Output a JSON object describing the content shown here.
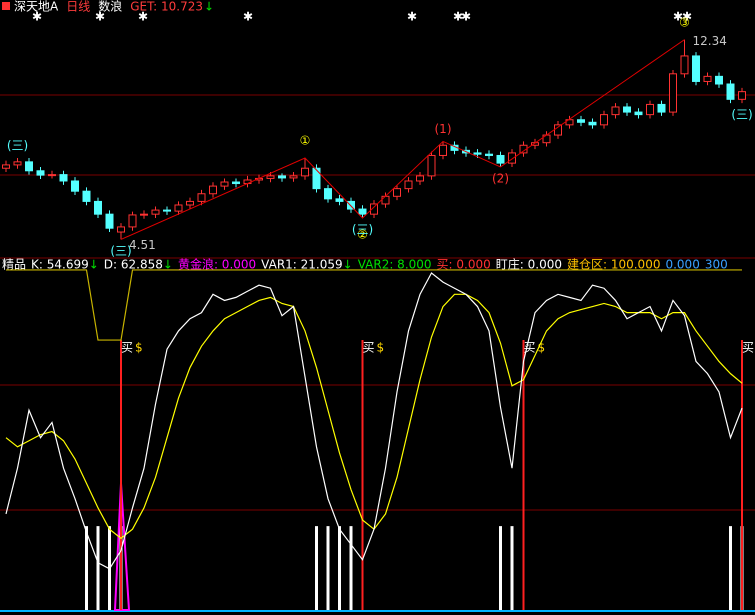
{
  "header": {
    "items": [
      {
        "text": "深天地A",
        "color": "#ffffff"
      },
      {
        "text": "日线",
        "color": "#ff3c3c"
      },
      {
        "text": "数浪",
        "color": "#ffffff"
      },
      {
        "text": "GET: 10.723",
        "color": "#ff3c3c"
      },
      {
        "text": "↓",
        "color": "#00e000"
      }
    ]
  },
  "chart_data": [
    {
      "type": "candlestick",
      "ylim": [
        3.9,
        13.5
      ],
      "up_color": "#ff3232",
      "down_color": "#54ffff",
      "wave_color": "#e00000",
      "open": [
        7.3,
        7.43,
        7.55,
        7.2,
        7.03,
        7.05,
        6.8,
        6.4,
        6.0,
        5.5,
        4.8,
        5.0,
        5.47,
        5.5,
        5.66,
        5.62,
        5.86,
        6.0,
        6.3,
        6.6,
        6.76,
        6.7,
        6.84,
        6.9,
        7.0,
        6.92,
        7.0,
        7.3,
        6.5,
        6.1,
        6.0,
        5.7,
        5.5,
        5.9,
        6.2,
        6.5,
        6.8,
        7.0,
        7.8,
        8.2,
        8.0,
        7.9,
        7.85,
        7.8,
        7.5,
        7.9,
        8.2,
        8.3,
        8.6,
        9.0,
        9.2,
        9.1,
        9.0,
        9.4,
        9.7,
        9.5,
        9.4,
        9.8,
        9.5,
        11.0,
        11.7,
        10.7,
        10.9,
        10.6,
        10.0
      ],
      "close": [
        7.43,
        7.55,
        7.2,
        7.03,
        7.05,
        6.8,
        6.4,
        6.0,
        5.5,
        4.95,
        5.0,
        5.47,
        5.5,
        5.66,
        5.62,
        5.86,
        6.0,
        6.3,
        6.6,
        6.76,
        6.7,
        6.84,
        6.9,
        7.0,
        6.92,
        7.0,
        7.3,
        6.5,
        6.1,
        6.0,
        5.7,
        5.5,
        5.9,
        6.2,
        6.5,
        6.8,
        7.0,
        7.8,
        8.2,
        8.0,
        7.9,
        7.85,
        7.8,
        7.5,
        7.9,
        8.2,
        8.3,
        8.6,
        9.0,
        9.2,
        9.1,
        9.0,
        9.4,
        9.7,
        9.5,
        9.4,
        9.8,
        9.5,
        11.0,
        11.7,
        10.7,
        10.9,
        10.6,
        10.0,
        10.3
      ],
      "high": [
        7.6,
        7.7,
        7.7,
        7.35,
        7.2,
        7.2,
        6.95,
        6.55,
        6.15,
        5.65,
        5.15,
        5.6,
        5.65,
        5.8,
        5.8,
        6.0,
        6.15,
        6.45,
        6.75,
        6.9,
        6.9,
        7.0,
        7.05,
        7.15,
        7.1,
        7.15,
        7.7,
        7.45,
        6.65,
        6.25,
        6.15,
        5.85,
        6.05,
        6.35,
        6.65,
        6.95,
        7.15,
        7.95,
        8.35,
        8.35,
        8.15,
        8.05,
        8.0,
        7.95,
        8.05,
        8.35,
        8.45,
        8.75,
        9.15,
        9.35,
        9.35,
        9.25,
        9.55,
        9.85,
        9.85,
        9.65,
        9.95,
        9.95,
        11.15,
        12.34,
        11.85,
        11.05,
        11.05,
        10.75,
        10.45
      ],
      "low": [
        7.15,
        7.28,
        7.05,
        6.88,
        6.9,
        6.65,
        6.25,
        5.85,
        5.35,
        4.8,
        4.51,
        4.85,
        5.32,
        5.35,
        5.47,
        5.47,
        5.71,
        5.85,
        6.15,
        6.45,
        6.55,
        6.55,
        6.69,
        6.75,
        6.77,
        6.77,
        6.85,
        6.35,
        5.95,
        5.85,
        5.55,
        5.35,
        5.35,
        5.75,
        6.05,
        6.35,
        6.65,
        6.85,
        7.65,
        7.85,
        7.75,
        7.7,
        7.65,
        7.35,
        7.35,
        7.75,
        8.05,
        8.15,
        8.45,
        8.85,
        8.95,
        8.85,
        8.85,
        9.25,
        9.35,
        9.25,
        9.25,
        9.35,
        9.35,
        10.85,
        10.55,
        10.55,
        10.45,
        9.85,
        9.85
      ],
      "wave": [
        {
          "index": 10,
          "at": "low"
        },
        {
          "index": 26,
          "at": "high"
        },
        {
          "index": 31,
          "at": "low"
        },
        {
          "index": 38,
          "at": "high"
        },
        {
          "index": 43,
          "at": "low"
        },
        {
          "index": 59,
          "at": "high"
        }
      ],
      "annotations": [
        {
          "text": "4.51",
          "index": 10,
          "at": "low",
          "color": "#c8c8c8"
        },
        {
          "text": "12.34",
          "index": 59,
          "at": "high",
          "color": "#c8c8c8"
        },
        {
          "text": "①",
          "index": 26,
          "at": "high",
          "color": "#ffff00"
        },
        {
          "text": "②",
          "index": 31,
          "at": "low",
          "color": "#ffff00"
        },
        {
          "text": "③",
          "index": 59,
          "at": "high",
          "color": "#ffff00"
        },
        {
          "text": "(1)",
          "index": 38,
          "at": "high",
          "color": "#ff3232"
        },
        {
          "text": "(2)",
          "index": 43,
          "at": "low",
          "color": "#ff3232"
        },
        {
          "text": "(三)",
          "index": 1,
          "at": "high",
          "color": "#54ffff"
        },
        {
          "text": "(三)",
          "index": 10,
          "at": "low",
          "color": "#54ffff"
        },
        {
          "text": "(三)",
          "index": 31,
          "at": "low",
          "color": "#54ffff"
        },
        {
          "text": "(三)",
          "index": 64,
          "at": "low",
          "color": "#54ffff"
        }
      ]
    },
    {
      "type": "indicator",
      "ylim": [
        -11.5,
        102.6
      ],
      "legend": [
        {
          "text": "精品",
          "color": "#ffffff"
        },
        {
          "text": "K: 54.699",
          "color": "#ffffff",
          "arrow": "↓"
        },
        {
          "text": "D: 62.858",
          "color": "#ffffff",
          "arrow": "↓"
        },
        {
          "text": "黄金浪: 0.000",
          "color": "#ff00ff"
        },
        {
          "text": "VAR1: 21.059",
          "color": "#ffffff",
          "arrow": "↓"
        },
        {
          "text": "VAR2: 8.000",
          "color": "#00e000"
        },
        {
          "text": "买: 0.000",
          "color": "#ff3232"
        },
        {
          "text": "盯庄: 0.000",
          "color": "#ffffff"
        },
        {
          "text": "建仓区: 100.000",
          "color": "#ffc000"
        },
        {
          "text": "0.000",
          "color": "#3aa0ff"
        },
        {
          "text": "300",
          "color": "#3aa0ff"
        }
      ],
      "arrow_color": "#00e000",
      "series": [
        {
          "color": "#ffffff",
          "values": [
            20,
            35,
            54,
            45,
            50,
            35,
            25,
            14,
            4,
            2,
            8,
            22,
            35,
            56,
            74,
            80,
            84,
            86,
            92,
            90,
            91,
            93,
            95,
            94,
            85,
            88,
            65,
            42,
            25,
            15,
            10,
            5,
            15,
            35,
            60,
            80,
            92,
            99,
            96,
            94,
            92,
            88,
            80,
            55,
            35,
            70,
            86,
            90,
            92,
            91,
            90,
            95,
            94,
            90,
            84,
            86,
            88,
            80,
            90,
            85,
            70,
            66,
            60,
            45,
            54.699
          ]
        },
        {
          "color": "#ffff00",
          "values": [
            45,
            42,
            44,
            46,
            47,
            44,
            38,
            30,
            22,
            15,
            12,
            15,
            22,
            32,
            45,
            58,
            68,
            75,
            80,
            84,
            86,
            88,
            90,
            91,
            89,
            88,
            80,
            68,
            54,
            40,
            28,
            18,
            15,
            20,
            32,
            48,
            64,
            78,
            88,
            92,
            92,
            90,
            86,
            76,
            62,
            64,
            72,
            80,
            84,
            86,
            87,
            88,
            89,
            88,
            86,
            86,
            86,
            84,
            86,
            86,
            80,
            75,
            70,
            66,
            62.858
          ]
        },
        {
          "color": "#c8b400",
          "values": [
            100,
            100,
            100,
            100,
            100,
            100,
            100,
            100,
            77,
            77,
            77,
            100,
            100,
            100,
            100,
            100,
            100,
            100,
            100,
            100,
            100,
            100,
            100,
            100,
            100,
            100,
            100,
            100,
            100,
            100,
            100,
            100,
            100,
            100,
            100,
            100,
            100,
            100,
            100,
            100,
            100,
            100,
            100,
            100,
            100,
            100,
            100,
            100,
            100,
            100,
            100,
            100,
            100,
            100,
            100,
            100,
            100,
            100,
            100,
            100,
            100,
            100,
            100,
            100,
            100
          ]
        }
      ],
      "bars": [
        {
          "color": "#ffffff",
          "values": [
            null,
            null,
            null,
            null,
            null,
            null,
            null,
            16,
            16,
            16,
            16,
            null,
            null,
            null,
            null,
            null,
            null,
            null,
            null,
            null,
            null,
            null,
            null,
            null,
            null,
            null,
            null,
            16,
            16,
            16,
            16,
            null,
            null,
            null,
            null,
            null,
            null,
            null,
            null,
            null,
            null,
            null,
            null,
            16,
            16,
            null,
            null,
            null,
            null,
            null,
            null,
            null,
            null,
            null,
            null,
            null,
            null,
            null,
            null,
            null,
            null,
            null,
            null,
            16,
            16
          ]
        },
        {
          "color": "#ff00ff",
          "values": [
            null,
            null,
            null,
            null,
            null,
            null,
            null,
            null,
            null,
            null,
            30,
            null,
            null,
            null,
            null,
            null,
            null,
            null,
            null,
            null,
            null,
            null,
            null,
            null,
            null,
            null,
            null,
            null,
            null,
            null,
            null,
            null,
            null,
            null,
            null,
            null,
            null,
            null,
            null,
            null,
            null,
            null,
            null,
            null,
            null,
            null,
            null,
            null,
            null,
            null,
            null,
            null,
            null,
            null,
            null,
            null,
            null,
            null,
            null,
            null,
            null,
            null,
            null,
            null,
            null
          ]
        }
      ],
      "buy": {
        "label": "买",
        "mark": "$",
        "indices": [
          10,
          31,
          45,
          64
        ],
        "color": "#ff2020",
        "mark_color": "#ffd700"
      }
    }
  ]
}
